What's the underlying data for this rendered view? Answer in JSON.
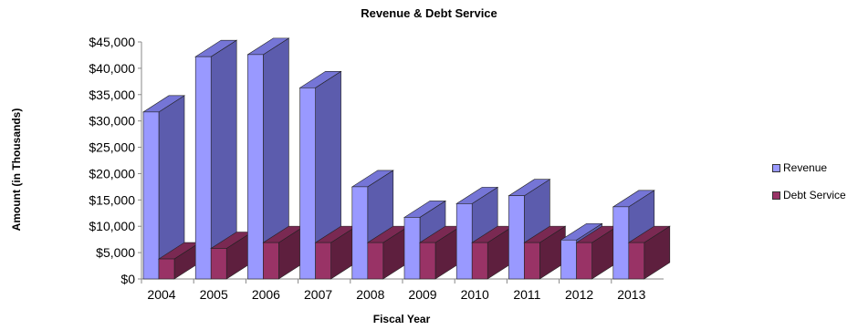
{
  "chart_data": {
    "type": "bar",
    "title": "Revenue & Debt Service",
    "xlabel": "Fiscal Year",
    "ylabel": "Amount (in Thousands)",
    "categories": [
      "2004",
      "2005",
      "2006",
      "2007",
      "2008",
      "2009",
      "2010",
      "2011",
      "2012",
      "2013"
    ],
    "series": [
      {
        "name": "Revenue",
        "values": [
          31700,
          42200,
          42600,
          36300,
          17500,
          11700,
          14300,
          15800,
          7400,
          13700
        ]
      },
      {
        "name": "Debt Service",
        "values": [
          3800,
          5800,
          6900,
          6900,
          6900,
          6900,
          6900,
          6900,
          6900,
          6900
        ]
      }
    ],
    "ylim": [
      0,
      45000
    ],
    "yticks": [
      "$0",
      "$5,000",
      "$10,000",
      "$15,000",
      "$20,000",
      "$25,000",
      "$30,000",
      "$35,000",
      "$40,000",
      "$45,000"
    ],
    "legend_position": "right",
    "colors": {
      "Revenue": {
        "front": "#9999ff",
        "side": "#5c5cad",
        "top": "#7575d6"
      },
      "Debt Service": {
        "front": "#993366",
        "side": "#5e1f3e",
        "top": "#7a2952"
      }
    }
  }
}
